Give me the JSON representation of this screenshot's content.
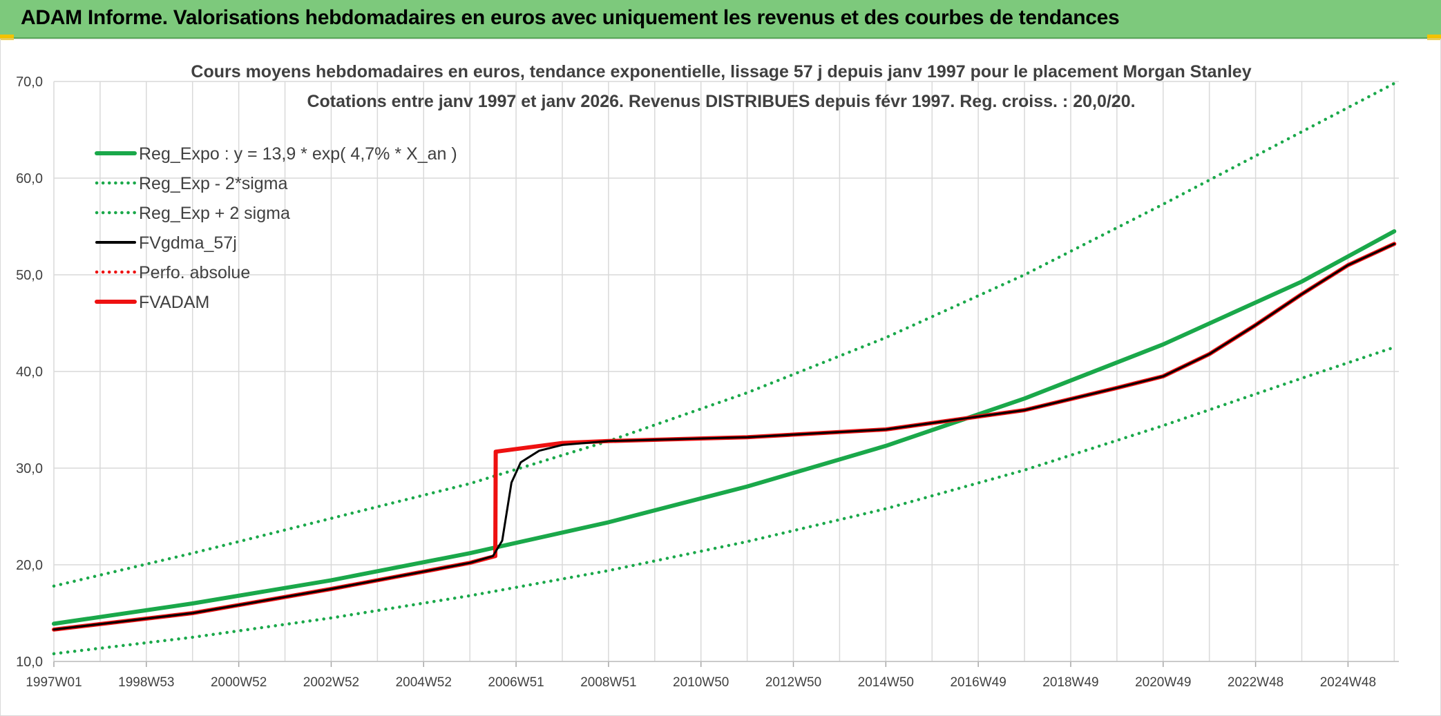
{
  "banner": {
    "title": "ADAM Informe. Valorisations hebdomadaires en euros avec uniquement les revenus et des courbes de tendances"
  },
  "colors": {
    "banner_bg": "#7dc97c",
    "green": "#1aa84a",
    "black": "#000000",
    "red": "#ee1111",
    "grid": "#d9d9d9",
    "text": "#404040"
  },
  "chart_data": {
    "type": "line",
    "title": "Cours moyens hebdomadaires en euros, tendance exponentielle, lissage 57 j depuis janv 1997 pour le placement Morgan Stanley",
    "subtitle": "Cotations entre janv 1997 et janv 2026. Revenus DISTRIBUES depuis févr 1997. Reg. croiss. : 20,0/20.",
    "ylim": [
      10,
      70
    ],
    "y_ticks": [
      "10,0",
      "20,0",
      "30,0",
      "40,0",
      "50,0",
      "60,0",
      "70,0"
    ],
    "x_range": [
      1997.0,
      2026.1
    ],
    "x_tick_labels": [
      "1997W01",
      "1998W53",
      "2000W52",
      "2002W52",
      "2004W52",
      "2006W51",
      "2008W51",
      "2010W50",
      "2012W50",
      "2014W50",
      "2016W49",
      "2018W49",
      "2020W49",
      "2022W48",
      "2024W48"
    ],
    "legend_position": "top-left",
    "series": [
      {
        "name": "Reg_Expo : y = 13,9 * exp( 4,7% *  X_an )",
        "color": "#1aa84a",
        "style": "solid",
        "x": [
          1997.0,
          2000.0,
          2003.0,
          2006.0,
          2009.0,
          2012.0,
          2015.0,
          2018.0,
          2021.0,
          2024.0,
          2026.0
        ],
        "y": [
          13.9,
          16.0,
          18.4,
          21.2,
          24.4,
          28.1,
          32.3,
          37.2,
          42.8,
          49.3,
          54.5
        ]
      },
      {
        "name": "Reg_Exp - 2*sigma",
        "color": "#1aa84a",
        "style": "dotted",
        "x": [
          1997.0,
          2000.0,
          2003.0,
          2006.0,
          2009.0,
          2012.0,
          2015.0,
          2018.0,
          2021.0,
          2024.0,
          2026.0
        ],
        "y": [
          10.8,
          12.5,
          14.5,
          16.8,
          19.4,
          22.4,
          25.8,
          29.8,
          34.4,
          39.3,
          42.5
        ]
      },
      {
        "name": "Reg_Exp + 2 sigma",
        "color": "#1aa84a",
        "style": "dotted",
        "x": [
          1997.0,
          2000.0,
          2003.0,
          2006.0,
          2009.0,
          2012.0,
          2015.0,
          2018.0,
          2021.0,
          2024.0,
          2026.0
        ],
        "y": [
          17.8,
          21.2,
          24.8,
          28.4,
          32.8,
          37.8,
          43.5,
          50.0,
          57.3,
          64.8,
          69.8
        ]
      },
      {
        "name": "FVgdma_57j",
        "color": "#000000",
        "style": "solid",
        "x": [
          1997.0,
          2000.0,
          2003.0,
          2006.0,
          2006.5,
          2006.7,
          2006.9,
          2007.1,
          2007.5,
          2008.0,
          2009.0,
          2012.0,
          2015.0,
          2018.0,
          2020.0,
          2021.0,
          2022.0,
          2023.0,
          2024.0,
          2025.0,
          2026.0
        ],
        "y": [
          13.3,
          15.0,
          17.5,
          20.2,
          20.9,
          22.5,
          28.5,
          30.6,
          31.8,
          32.4,
          32.8,
          33.2,
          34.0,
          36.0,
          38.3,
          39.5,
          41.8,
          44.8,
          48.0,
          51.0,
          53.2
        ]
      },
      {
        "name": "Perfo. absolue",
        "color": "#ee1111",
        "style": "dotted",
        "x": [
          1997.0,
          2000.0,
          2003.0,
          2006.0,
          2006.55,
          2006.56,
          2008.0,
          2009.0,
          2012.0,
          2015.0,
          2018.0,
          2020.0,
          2021.0,
          2022.0,
          2023.0,
          2024.0,
          2025.0,
          2026.0
        ],
        "y": [
          13.3,
          15.0,
          17.5,
          20.2,
          20.9,
          31.7,
          32.6,
          32.8,
          33.2,
          34.0,
          36.0,
          38.3,
          39.5,
          41.8,
          44.8,
          48.0,
          51.0,
          53.2
        ]
      },
      {
        "name": "FVADAM",
        "color": "#ee1111",
        "style": "solid",
        "x": [
          1997.0,
          2000.0,
          2003.0,
          2006.0,
          2006.55,
          2006.56,
          2008.0,
          2009.0,
          2012.0,
          2015.0,
          2018.0,
          2020.0,
          2021.0,
          2022.0,
          2023.0,
          2024.0,
          2025.0,
          2026.0
        ],
        "y": [
          13.3,
          15.0,
          17.5,
          20.2,
          20.9,
          31.7,
          32.6,
          32.8,
          33.2,
          34.0,
          36.0,
          38.3,
          39.5,
          41.8,
          44.8,
          48.0,
          51.0,
          53.2
        ]
      }
    ]
  }
}
